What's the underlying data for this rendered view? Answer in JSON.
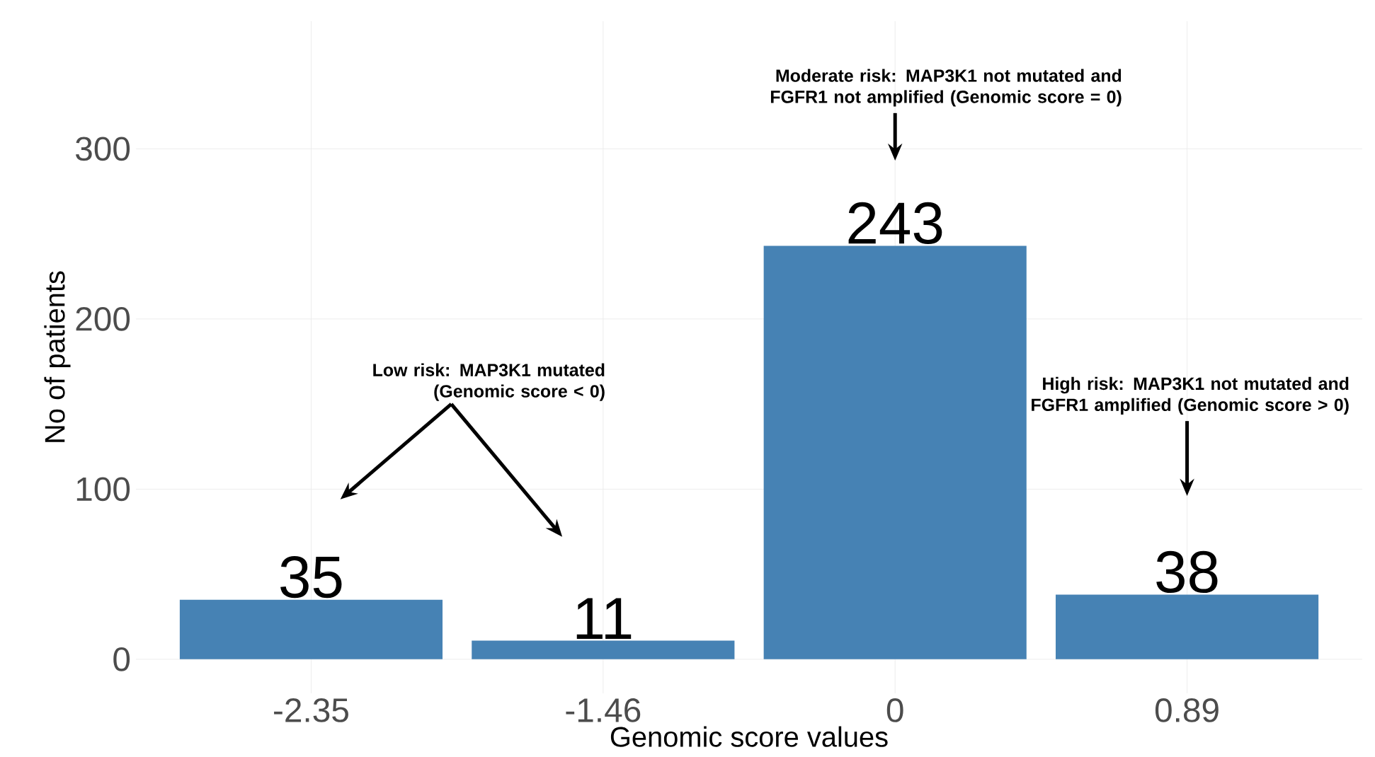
{
  "chart_data": {
    "type": "bar",
    "xlabel": "Genomic score values",
    "ylabel": "No of patients",
    "categories": [
      "-2.35",
      "-1.46",
      "0",
      "0.89"
    ],
    "values": [
      35,
      11,
      243,
      38
    ],
    "color": "#4682b4",
    "data_labels": true,
    "ylim": [
      -20,
      375
    ],
    "yticks": [
      0,
      100,
      200,
      300
    ],
    "grid": true,
    "annotations": [
      "Low risk: MAP3K1 mutated (Genomic score < 0)",
      "Moderate risk: MAP3K1 not mutated and FGFR1 not amplified (Genomic score = 0)",
      "High risk: MAP3K1 not mutated and FGFR1 amplified (Genomic score > 0)"
    ]
  }
}
